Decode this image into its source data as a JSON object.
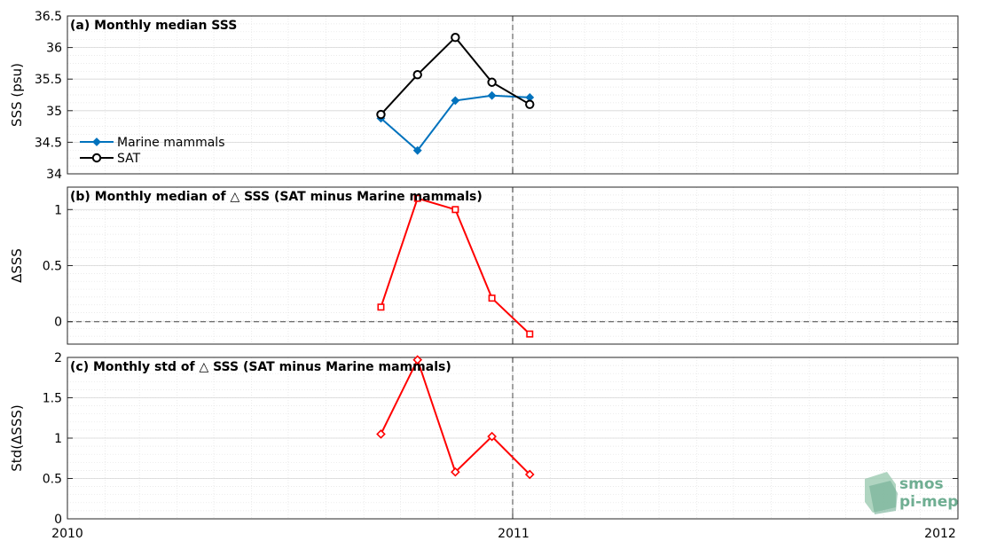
{
  "chart_data": [
    {
      "type": "line",
      "title": "(a) Monthly median SSS",
      "ylabel": "SSS (psu)",
      "xlim": [
        "2010-01-01",
        "2012-01-01"
      ],
      "ylim": [
        34,
        36.5
      ],
      "yticks": [
        34,
        34.5,
        35,
        35.5,
        36,
        36.5
      ],
      "ytick_labels": [
        "34",
        "34.5",
        "35",
        "35.5",
        "36",
        "36.5"
      ],
      "grid": true,
      "legend_position": "lower-left",
      "series": [
        {
          "name": "Marine mammals",
          "color": "#0072bd",
          "marker": "diamond-filled",
          "x": [
            "2010-09-15",
            "2010-10-15",
            "2010-11-15",
            "2010-12-15",
            "2011-01-15"
          ],
          "y": [
            34.88,
            34.37,
            35.16,
            35.24,
            35.21
          ]
        },
        {
          "name": "SAT",
          "color": "#000000",
          "marker": "circle-open",
          "x": [
            "2010-09-15",
            "2010-10-15",
            "2010-11-15",
            "2010-12-15",
            "2011-01-15"
          ],
          "y": [
            34.94,
            35.57,
            36.16,
            35.45,
            35.1
          ]
        }
      ]
    },
    {
      "type": "line",
      "title": "(b) Monthly median of △ SSS (SAT minus Marine mammals)",
      "ylabel": "ΔSSS",
      "xlim": [
        "2010-01-01",
        "2012-01-01"
      ],
      "ylim": [
        -0.2,
        1.2
      ],
      "yticks": [
        0,
        0.5,
        1
      ],
      "ytick_labels": [
        "0",
        "0.5",
        "1"
      ],
      "grid": true,
      "zero_line": true,
      "series": [
        {
          "color": "#ff0000",
          "marker": "square-open",
          "x": [
            "2010-09-15",
            "2010-10-15",
            "2010-11-15",
            "2010-12-15",
            "2011-01-15"
          ],
          "y": [
            0.13,
            1.1,
            1.0,
            0.21,
            -0.11
          ]
        }
      ]
    },
    {
      "type": "line",
      "title": "(c) Monthly std of △ SSS (SAT minus Marine mammals)",
      "ylabel": "Std(ΔSSS)",
      "xlim": [
        "2010-01-01",
        "2012-01-01"
      ],
      "ylim": [
        0,
        2
      ],
      "yticks": [
        0,
        0.5,
        1,
        1.5,
        2
      ],
      "ytick_labels": [
        "0",
        "0.5",
        "1",
        "1.5",
        "2"
      ],
      "grid": true,
      "series": [
        {
          "color": "#ff0000",
          "marker": "diamond-open",
          "x": [
            "2010-09-15",
            "2010-10-15",
            "2010-11-15",
            "2010-12-15",
            "2011-01-15"
          ],
          "y": [
            1.05,
            1.97,
            0.58,
            1.02,
            0.55
          ]
        }
      ]
    }
  ],
  "x_axis": {
    "ticks": [
      "2010-01-01",
      "2011-01-01",
      "2012-01-01"
    ],
    "tick_labels": [
      "2010",
      "2011",
      "2012"
    ],
    "reference_line": "2011-01-01"
  },
  "logo": {
    "line1": "smos",
    "line2": "pi-mep"
  }
}
